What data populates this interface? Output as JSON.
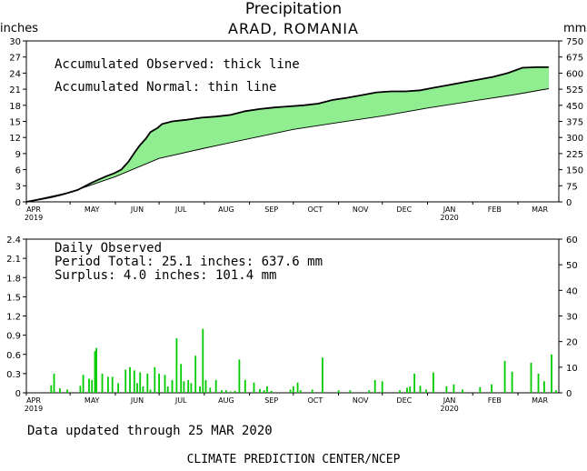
{
  "header": {
    "title": "Precipitation",
    "location": "ARAD, ROMANIA"
  },
  "units": {
    "left": "inches",
    "right": "mm"
  },
  "footer": {
    "updated": "Data updated through 25 MAR 2020",
    "agency": "CLIMATE PREDICTION CENTER/NCEP"
  },
  "chart_data": [
    {
      "type": "area",
      "notes": [
        "Accumulated Observed: thick line",
        "Accumulated Normal: thin line"
      ],
      "x_ticks": [
        {
          "label": "APR",
          "year": "2019"
        },
        {
          "label": "MAY",
          "year": ""
        },
        {
          "label": "JUN",
          "year": ""
        },
        {
          "label": "JUL",
          "year": ""
        },
        {
          "label": "AUG",
          "year": ""
        },
        {
          "label": "SEP",
          "year": ""
        },
        {
          "label": "OCT",
          "year": ""
        },
        {
          "label": "NOV",
          "year": ""
        },
        {
          "label": "DEC",
          "year": ""
        },
        {
          "label": "JAN",
          "year": "2020"
        },
        {
          "label": "FEB",
          "year": ""
        },
        {
          "label": "MAR",
          "year": ""
        }
      ],
      "ylim_left": [
        0,
        30
      ],
      "y_ticks_left": [
        "0",
        "3",
        "6",
        "9",
        "12",
        "15",
        "18",
        "21",
        "24",
        "27",
        "30"
      ],
      "ylim_right": [
        0,
        750
      ],
      "y_ticks_right": [
        "0",
        "75",
        "150",
        "225",
        "300",
        "375",
        "450",
        "525",
        "600",
        "675",
        "750"
      ],
      "surplus_color": "#90ee90",
      "deficit_color": "#a08070",
      "series": [
        {
          "name": "Accumulated Observed",
          "x": [
            0,
            8,
            16,
            24,
            30,
            35,
            40,
            45,
            50,
            55,
            60,
            65,
            70,
            75,
            78,
            82,
            85,
            90,
            93,
            97,
            100,
            110,
            120,
            130,
            140,
            150,
            160,
            170,
            180,
            190,
            200,
            210,
            220,
            230,
            240,
            250,
            260,
            270,
            280,
            290,
            300,
            310,
            320,
            330,
            340,
            350,
            358
          ],
          "y": [
            0,
            0.4,
            0.8,
            1.3,
            1.8,
            2.2,
            2.9,
            3.6,
            4.2,
            4.8,
            5.3,
            6.0,
            7.5,
            9.5,
            10.6,
            11.8,
            13.0,
            13.8,
            14.5,
            14.8,
            15.0,
            15.3,
            15.7,
            15.9,
            16.2,
            16.9,
            17.3,
            17.6,
            17.8,
            18.0,
            18.3,
            19.0,
            19.4,
            19.9,
            20.4,
            20.6,
            20.6,
            20.8,
            21.3,
            21.8,
            22.3,
            22.8,
            23.3,
            24.0,
            25.0,
            25.1,
            25.1
          ]
        },
        {
          "name": "Accumulated Normal",
          "x": [
            0,
            30,
            61,
            91,
            122,
            153,
            183,
            214,
            244,
            275,
            306,
            335,
            358
          ],
          "y": [
            0,
            1.8,
            4.7,
            8.1,
            10.0,
            11.8,
            13.5,
            14.8,
            16.0,
            17.5,
            18.8,
            20.0,
            21.1
          ]
        }
      ]
    },
    {
      "type": "bar",
      "notes": [
        "Daily Observed",
        "Period Total:    25.1 inches:    637.6 mm",
        "Surplus:     4.0 inches:  101.4 mm"
      ],
      "ylim_left": [
        0,
        2.4
      ],
      "y_ticks_left": [
        "0",
        "0.3",
        "0.6",
        "0.9",
        "1.2",
        "1.5",
        "1.8",
        "2.1",
        "2.4"
      ],
      "ylim_right": [
        0,
        60
      ],
      "y_ticks_right": [
        "0",
        "10",
        "20",
        "30",
        "40",
        "50",
        "60"
      ],
      "bar_color": "#00cc00",
      "x": [
        17,
        19,
        23,
        28,
        37,
        39,
        43,
        45,
        47,
        48,
        52,
        56,
        59,
        63,
        68,
        71,
        74,
        76,
        78,
        80,
        83,
        85,
        88,
        91,
        95,
        97,
        100,
        103,
        106,
        108,
        111,
        113,
        116,
        119,
        121,
        123,
        126,
        130,
        134,
        137,
        140,
        143,
        146,
        150,
        156,
        160,
        163,
        165,
        168,
        181,
        183,
        186,
        188,
        196,
        203,
        214,
        222,
        235,
        239,
        244,
        256,
        261,
        263,
        266,
        270,
        274,
        279,
        288,
        293,
        299,
        311,
        319,
        328,
        333,
        346,
        351,
        355,
        360,
        363
      ],
      "values": [
        0.12,
        0.3,
        0.07,
        0.05,
        0.11,
        0.28,
        0.22,
        0.2,
        0.65,
        0.7,
        0.3,
        0.25,
        0.25,
        0.15,
        0.36,
        0.4,
        0.35,
        0.15,
        0.32,
        0.1,
        0.3,
        0.05,
        0.4,
        0.3,
        0.28,
        0.1,
        0.2,
        0.85,
        0.45,
        0.18,
        0.2,
        0.15,
        0.58,
        0.1,
        1.0,
        0.2,
        0.08,
        0.2,
        0.04,
        0.04,
        0.02,
        0.03,
        0.52,
        0.2,
        0.16,
        0.06,
        0.04,
        0.1,
        0.03,
        0.05,
        0.1,
        0.16,
        0.04,
        0.05,
        0.55,
        0.04,
        0.04,
        0.04,
        0.2,
        0.18,
        0.04,
        0.08,
        0.1,
        0.3,
        0.11,
        0.05,
        0.32,
        0.1,
        0.13,
        0.05,
        0.09,
        0.13,
        0.5,
        0.33,
        0.47,
        0.3,
        0.18,
        0.6,
        0.04
      ]
    }
  ]
}
